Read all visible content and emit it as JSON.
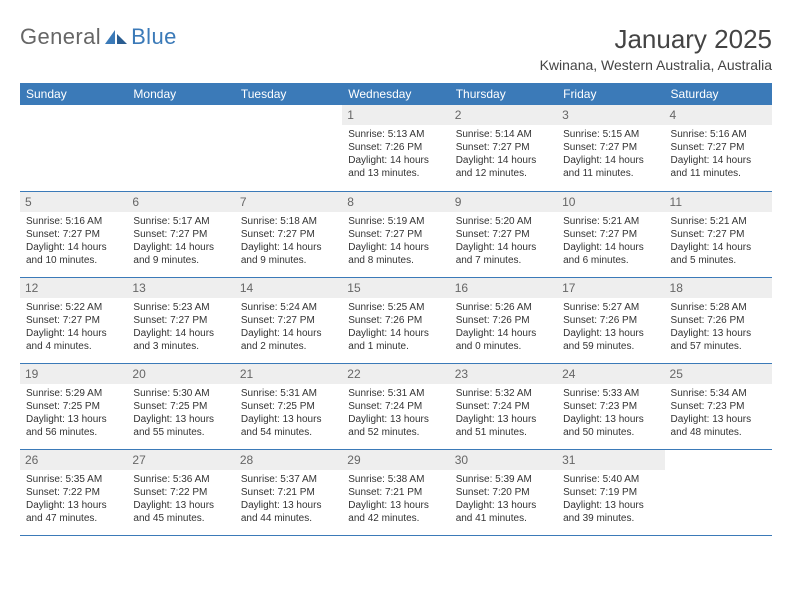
{
  "brand": {
    "word1": "General",
    "word2": "Blue"
  },
  "title": "January 2025",
  "location": "Kwinana, Western Australia, Australia",
  "colors": {
    "header_bg": "#3b7ab8",
    "header_fg": "#ffffff",
    "daynum_bg": "#eeeeee",
    "daynum_fg": "#666666",
    "border": "#3b7ab8",
    "text": "#333333",
    "brand_gray": "#666666",
    "brand_blue": "#3b7ab8",
    "page_bg": "#ffffff"
  },
  "typography": {
    "title_fontsize": 26,
    "location_fontsize": 14,
    "dayhead_fontsize": 12,
    "daynum_fontsize": 12,
    "body_fontsize": 10
  },
  "day_names": [
    "Sunday",
    "Monday",
    "Tuesday",
    "Wednesday",
    "Thursday",
    "Friday",
    "Saturday"
  ],
  "weeks": [
    [
      {
        "n": "",
        "l1": "",
        "l2": "",
        "l3": "",
        "l4": ""
      },
      {
        "n": "",
        "l1": "",
        "l2": "",
        "l3": "",
        "l4": ""
      },
      {
        "n": "",
        "l1": "",
        "l2": "",
        "l3": "",
        "l4": ""
      },
      {
        "n": "1",
        "l1": "Sunrise: 5:13 AM",
        "l2": "Sunset: 7:26 PM",
        "l3": "Daylight: 14 hours",
        "l4": "and 13 minutes."
      },
      {
        "n": "2",
        "l1": "Sunrise: 5:14 AM",
        "l2": "Sunset: 7:27 PM",
        "l3": "Daylight: 14 hours",
        "l4": "and 12 minutes."
      },
      {
        "n": "3",
        "l1": "Sunrise: 5:15 AM",
        "l2": "Sunset: 7:27 PM",
        "l3": "Daylight: 14 hours",
        "l4": "and 11 minutes."
      },
      {
        "n": "4",
        "l1": "Sunrise: 5:16 AM",
        "l2": "Sunset: 7:27 PM",
        "l3": "Daylight: 14 hours",
        "l4": "and 11 minutes."
      }
    ],
    [
      {
        "n": "5",
        "l1": "Sunrise: 5:16 AM",
        "l2": "Sunset: 7:27 PM",
        "l3": "Daylight: 14 hours",
        "l4": "and 10 minutes."
      },
      {
        "n": "6",
        "l1": "Sunrise: 5:17 AM",
        "l2": "Sunset: 7:27 PM",
        "l3": "Daylight: 14 hours",
        "l4": "and 9 minutes."
      },
      {
        "n": "7",
        "l1": "Sunrise: 5:18 AM",
        "l2": "Sunset: 7:27 PM",
        "l3": "Daylight: 14 hours",
        "l4": "and 9 minutes."
      },
      {
        "n": "8",
        "l1": "Sunrise: 5:19 AM",
        "l2": "Sunset: 7:27 PM",
        "l3": "Daylight: 14 hours",
        "l4": "and 8 minutes."
      },
      {
        "n": "9",
        "l1": "Sunrise: 5:20 AM",
        "l2": "Sunset: 7:27 PM",
        "l3": "Daylight: 14 hours",
        "l4": "and 7 minutes."
      },
      {
        "n": "10",
        "l1": "Sunrise: 5:21 AM",
        "l2": "Sunset: 7:27 PM",
        "l3": "Daylight: 14 hours",
        "l4": "and 6 minutes."
      },
      {
        "n": "11",
        "l1": "Sunrise: 5:21 AM",
        "l2": "Sunset: 7:27 PM",
        "l3": "Daylight: 14 hours",
        "l4": "and 5 minutes."
      }
    ],
    [
      {
        "n": "12",
        "l1": "Sunrise: 5:22 AM",
        "l2": "Sunset: 7:27 PM",
        "l3": "Daylight: 14 hours",
        "l4": "and 4 minutes."
      },
      {
        "n": "13",
        "l1": "Sunrise: 5:23 AM",
        "l2": "Sunset: 7:27 PM",
        "l3": "Daylight: 14 hours",
        "l4": "and 3 minutes."
      },
      {
        "n": "14",
        "l1": "Sunrise: 5:24 AM",
        "l2": "Sunset: 7:27 PM",
        "l3": "Daylight: 14 hours",
        "l4": "and 2 minutes."
      },
      {
        "n": "15",
        "l1": "Sunrise: 5:25 AM",
        "l2": "Sunset: 7:26 PM",
        "l3": "Daylight: 14 hours",
        "l4": "and 1 minute."
      },
      {
        "n": "16",
        "l1": "Sunrise: 5:26 AM",
        "l2": "Sunset: 7:26 PM",
        "l3": "Daylight: 14 hours",
        "l4": "and 0 minutes."
      },
      {
        "n": "17",
        "l1": "Sunrise: 5:27 AM",
        "l2": "Sunset: 7:26 PM",
        "l3": "Daylight: 13 hours",
        "l4": "and 59 minutes."
      },
      {
        "n": "18",
        "l1": "Sunrise: 5:28 AM",
        "l2": "Sunset: 7:26 PM",
        "l3": "Daylight: 13 hours",
        "l4": "and 57 minutes."
      }
    ],
    [
      {
        "n": "19",
        "l1": "Sunrise: 5:29 AM",
        "l2": "Sunset: 7:25 PM",
        "l3": "Daylight: 13 hours",
        "l4": "and 56 minutes."
      },
      {
        "n": "20",
        "l1": "Sunrise: 5:30 AM",
        "l2": "Sunset: 7:25 PM",
        "l3": "Daylight: 13 hours",
        "l4": "and 55 minutes."
      },
      {
        "n": "21",
        "l1": "Sunrise: 5:31 AM",
        "l2": "Sunset: 7:25 PM",
        "l3": "Daylight: 13 hours",
        "l4": "and 54 minutes."
      },
      {
        "n": "22",
        "l1": "Sunrise: 5:31 AM",
        "l2": "Sunset: 7:24 PM",
        "l3": "Daylight: 13 hours",
        "l4": "and 52 minutes."
      },
      {
        "n": "23",
        "l1": "Sunrise: 5:32 AM",
        "l2": "Sunset: 7:24 PM",
        "l3": "Daylight: 13 hours",
        "l4": "and 51 minutes."
      },
      {
        "n": "24",
        "l1": "Sunrise: 5:33 AM",
        "l2": "Sunset: 7:23 PM",
        "l3": "Daylight: 13 hours",
        "l4": "and 50 minutes."
      },
      {
        "n": "25",
        "l1": "Sunrise: 5:34 AM",
        "l2": "Sunset: 7:23 PM",
        "l3": "Daylight: 13 hours",
        "l4": "and 48 minutes."
      }
    ],
    [
      {
        "n": "26",
        "l1": "Sunrise: 5:35 AM",
        "l2": "Sunset: 7:22 PM",
        "l3": "Daylight: 13 hours",
        "l4": "and 47 minutes."
      },
      {
        "n": "27",
        "l1": "Sunrise: 5:36 AM",
        "l2": "Sunset: 7:22 PM",
        "l3": "Daylight: 13 hours",
        "l4": "and 45 minutes."
      },
      {
        "n": "28",
        "l1": "Sunrise: 5:37 AM",
        "l2": "Sunset: 7:21 PM",
        "l3": "Daylight: 13 hours",
        "l4": "and 44 minutes."
      },
      {
        "n": "29",
        "l1": "Sunrise: 5:38 AM",
        "l2": "Sunset: 7:21 PM",
        "l3": "Daylight: 13 hours",
        "l4": "and 42 minutes."
      },
      {
        "n": "30",
        "l1": "Sunrise: 5:39 AM",
        "l2": "Sunset: 7:20 PM",
        "l3": "Daylight: 13 hours",
        "l4": "and 41 minutes."
      },
      {
        "n": "31",
        "l1": "Sunrise: 5:40 AM",
        "l2": "Sunset: 7:19 PM",
        "l3": "Daylight: 13 hours",
        "l4": "and 39 minutes."
      },
      {
        "n": "",
        "l1": "",
        "l2": "",
        "l3": "",
        "l4": ""
      }
    ]
  ]
}
